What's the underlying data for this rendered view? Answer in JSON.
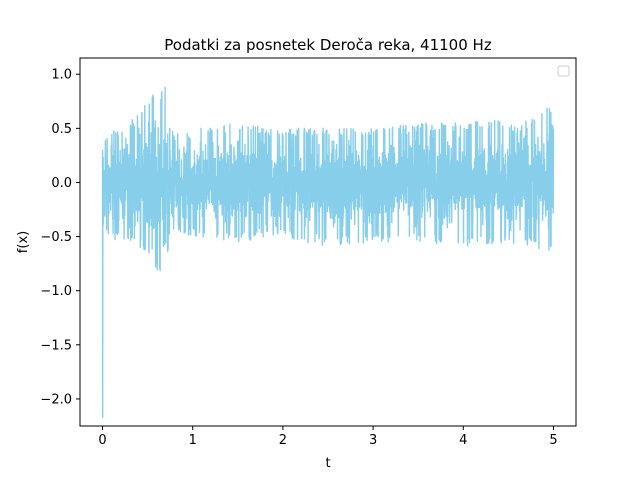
{
  "chart_data": {
    "type": "line",
    "title": "Podatki za posnetek Deroča reka, 41100 Hz",
    "xlabel": "t",
    "ylabel": "f(x)",
    "xlim": [
      -0.25,
      5.25
    ],
    "ylim": [
      -2.25,
      1.15
    ],
    "xticks": [
      0,
      1,
      2,
      3,
      4,
      5
    ],
    "yticks": [
      1.0,
      0.5,
      0.0,
      -0.5,
      -1.0,
      -1.5,
      -2.0
    ],
    "xtick_labels": [
      "0",
      "1",
      "2",
      "3",
      "4",
      "5"
    ],
    "ytick_labels": [
      "1.0",
      "0.5",
      "0.0",
      "−0.5",
      "−1.0",
      "−1.5",
      "−2.0"
    ],
    "grid": false,
    "legend": "upper right",
    "series": [
      {
        "color": "#87CEEB",
        "sample_rate_hz": 41100,
        "duration_s": 5.0,
        "spike": {
          "t": 0.0,
          "value": -2.17
        },
        "envelope": {
          "t": [
            0.0,
            0.05,
            0.2,
            0.35,
            0.45,
            0.55,
            0.6,
            0.65,
            0.7,
            0.75,
            0.8,
            1.0,
            1.5,
            2.0,
            2.5,
            3.0,
            3.5,
            4.0,
            4.5,
            4.6,
            4.8,
            4.95,
            5.0
          ],
          "upper": [
            0.35,
            0.45,
            0.5,
            0.6,
            0.7,
            0.8,
            1.0,
            1.0,
            0.9,
            0.5,
            0.45,
            0.5,
            0.55,
            0.5,
            0.5,
            0.5,
            0.55,
            0.55,
            0.6,
            0.5,
            0.65,
            0.75,
            0.55
          ],
          "lower": [
            -0.4,
            -0.5,
            -0.55,
            -0.55,
            -0.65,
            -0.8,
            -0.85,
            -0.9,
            -0.8,
            -0.5,
            -0.45,
            -0.5,
            -0.55,
            -0.5,
            -0.6,
            -0.55,
            -0.55,
            -0.6,
            -0.55,
            -0.6,
            -0.6,
            -0.65,
            -0.6
          ]
        }
      }
    ]
  }
}
